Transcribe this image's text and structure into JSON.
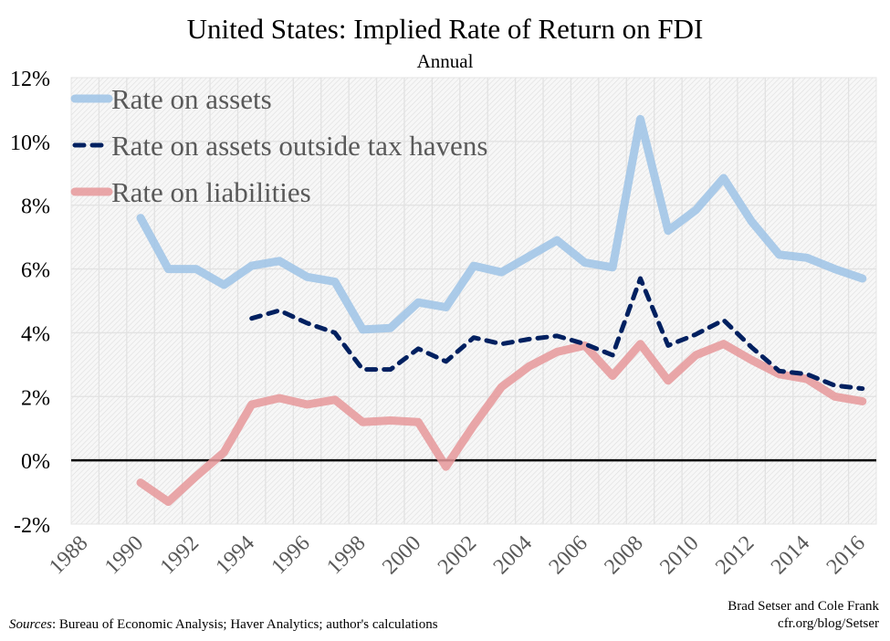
{
  "chart_data": {
    "type": "line",
    "title": "United States: Implied Rate of Return on FDI",
    "subtitle": "Annual",
    "xlabel": "",
    "ylabel": "",
    "categories": [
      1988,
      1989,
      1990,
      1991,
      1992,
      1993,
      1994,
      1995,
      1996,
      1997,
      1998,
      1999,
      2000,
      2001,
      2002,
      2003,
      2004,
      2005,
      2006,
      2007,
      2008,
      2009,
      2010,
      2011,
      2012,
      2013,
      2014,
      2015,
      2016
    ],
    "x_tick_labels": [
      "1988",
      "1990",
      "1992",
      "1994",
      "1996",
      "1998",
      "2000",
      "2002",
      "2004",
      "2006",
      "2008",
      "2010",
      "2012",
      "2014",
      "2016"
    ],
    "y_tick_labels": [
      "-2%",
      "0%",
      "2%",
      "4%",
      "6%",
      "8%",
      "10%",
      "12%"
    ],
    "ylim": [
      -2,
      12
    ],
    "y_unit": "%",
    "grid": true,
    "legend_position": "top-left",
    "series": [
      {
        "name": "Rate on assets",
        "color": "#9dc3e6",
        "style": "solid",
        "values": [
          null,
          null,
          7.6,
          6.0,
          6.0,
          5.5,
          6.1,
          6.25,
          5.75,
          5.6,
          4.1,
          4.15,
          4.95,
          4.8,
          6.1,
          5.9,
          6.4,
          6.9,
          6.2,
          6.05,
          10.7,
          7.2,
          7.85,
          8.85,
          7.5,
          6.45,
          6.35,
          6.0,
          5.7
        ]
      },
      {
        "name": "Rate on assets outside tax havens",
        "color": "#002060",
        "style": "dashed",
        "values": [
          null,
          null,
          null,
          null,
          null,
          null,
          4.45,
          4.7,
          4.3,
          4.0,
          2.85,
          2.85,
          3.5,
          3.1,
          3.85,
          3.65,
          3.8,
          3.9,
          3.65,
          3.3,
          5.7,
          3.6,
          3.95,
          4.4,
          3.55,
          2.8,
          2.7,
          2.35,
          2.25
        ]
      },
      {
        "name": "Rate on liabilities",
        "color": "#e6989a",
        "style": "solid",
        "values": [
          null,
          null,
          -0.7,
          -1.3,
          -0.5,
          0.25,
          1.75,
          1.95,
          1.75,
          1.9,
          1.2,
          1.25,
          1.2,
          -0.2,
          1.1,
          2.3,
          2.95,
          3.4,
          3.6,
          2.65,
          3.65,
          2.5,
          3.3,
          3.65,
          3.15,
          2.7,
          2.55,
          2.0,
          1.85
        ]
      }
    ]
  },
  "footer": {
    "sources_label": "Sources",
    "sources_text": ": Bureau of Economic Analysis; Haver Analytics;  author's calculations",
    "credit_line1": "Brad Setser and Cole Frank",
    "credit_line2": "cfr.org/blog/Setser"
  }
}
